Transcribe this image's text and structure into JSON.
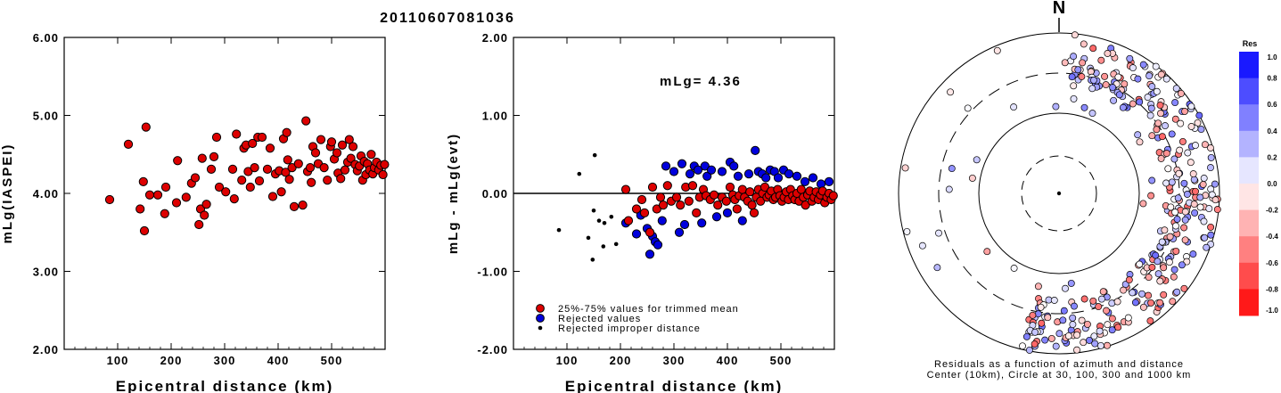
{
  "figure_title": "20110607081036",
  "colors": {
    "red": "#dd0000",
    "blue": "#0000dd",
    "black": "#000000"
  },
  "chart_data": [
    {
      "type": "scatter",
      "xlabel": "Epicentral distance (km)",
      "ylabel": "mLg(IASPEI)",
      "xlim": [
        0,
        600
      ],
      "ylim": [
        2.0,
        6.0
      ],
      "x_ticks": [
        100,
        200,
        300,
        400,
        500
      ],
      "y_ticks": [
        "2.00",
        "3.00",
        "4.00",
        "5.00",
        "6.00"
      ],
      "points": [
        [
          85,
          3.92
        ],
        [
          120,
          4.63
        ],
        [
          142,
          3.8
        ],
        [
          148,
          4.15
        ],
        [
          150,
          3.52
        ],
        [
          153,
          4.85
        ],
        [
          160,
          3.98
        ],
        [
          175,
          3.98
        ],
        [
          188,
          3.74
        ],
        [
          190,
          4.08
        ],
        [
          210,
          3.88
        ],
        [
          212,
          4.42
        ],
        [
          228,
          3.95
        ],
        [
          238,
          4.13
        ],
        [
          245,
          4.2
        ],
        [
          252,
          3.6
        ],
        [
          255,
          3.8
        ],
        [
          258,
          4.45
        ],
        [
          262,
          3.72
        ],
        [
          266,
          3.86
        ],
        [
          275,
          4.31
        ],
        [
          280,
          4.47
        ],
        [
          285,
          4.72
        ],
        [
          290,
          4.08
        ],
        [
          302,
          4.02
        ],
        [
          315,
          4.31
        ],
        [
          318,
          3.93
        ],
        [
          322,
          4.76
        ],
        [
          332,
          4.17
        ],
        [
          336,
          4.58
        ],
        [
          340,
          4.62
        ],
        [
          344,
          4.28
        ],
        [
          348,
          4.08
        ],
        [
          352,
          4.64
        ],
        [
          356,
          4.33
        ],
        [
          362,
          4.72
        ],
        [
          365,
          4.16
        ],
        [
          370,
          4.72
        ],
        [
          380,
          4.31
        ],
        [
          385,
          4.58
        ],
        [
          390,
          3.96
        ],
        [
          395,
          4.25
        ],
        [
          402,
          4.29
        ],
        [
          406,
          4.02
        ],
        [
          410,
          4.7
        ],
        [
          414,
          4.27
        ],
        [
          416,
          4.78
        ],
        [
          418,
          4.43
        ],
        [
          421,
          4.18
        ],
        [
          426,
          4.33
        ],
        [
          430,
          3.83
        ],
        [
          438,
          4.38
        ],
        [
          446,
          3.85
        ],
        [
          452,
          4.93
        ],
        [
          455,
          4.28
        ],
        [
          460,
          4.33
        ],
        [
          462,
          4.14
        ],
        [
          465,
          4.6
        ],
        [
          470,
          4.52
        ],
        [
          475,
          4.38
        ],
        [
          480,
          4.69
        ],
        [
          486,
          4.33
        ],
        [
          492,
          4.17
        ],
        [
          498,
          4.6
        ],
        [
          500,
          4.66
        ],
        [
          505,
          4.44
        ],
        [
          510,
          4.52
        ],
        [
          512,
          4.26
        ],
        [
          517,
          4.19
        ],
        [
          520,
          4.62
        ],
        [
          525,
          4.3
        ],
        [
          530,
          4.4
        ],
        [
          533,
          4.69
        ],
        [
          536,
          4.45
        ],
        [
          540,
          4.6
        ],
        [
          544,
          4.37
        ],
        [
          548,
          4.29
        ],
        [
          552,
          4.35
        ],
        [
          555,
          4.48
        ],
        [
          558,
          4.17
        ],
        [
          561,
          4.41
        ],
        [
          564,
          4.24
        ],
        [
          567,
          4.38
        ],
        [
          571,
          4.3
        ],
        [
          574,
          4.5
        ],
        [
          577,
          4.25
        ],
        [
          580,
          4.33
        ],
        [
          584,
          4.4
        ],
        [
          588,
          4.3
        ],
        [
          592,
          4.36
        ],
        [
          596,
          4.24
        ],
        [
          599,
          4.37
        ]
      ]
    },
    {
      "type": "scatter",
      "xlabel": "Epicentral distance (km)",
      "ylabel": "mLg - mLg(evt)",
      "annotation": "mLg= 4.36",
      "xlim": [
        0,
        600
      ],
      "ylim": [
        -2.0,
        2.0
      ],
      "x_ticks": [
        100,
        200,
        300,
        400,
        500
      ],
      "y_ticks": [
        "-2.00",
        "-1.00",
        "0.00",
        "1.00",
        "2.00"
      ],
      "reference_line_y": 0,
      "legend": [
        {
          "label": "25%-75% values for trimmed mean",
          "color": "#dd0000",
          "marker": "circle"
        },
        {
          "label": "Rejected values",
          "color": "#0000dd",
          "marker": "circle"
        },
        {
          "label": "Rejected improper distance",
          "color": "#000000",
          "marker": "dot"
        }
      ],
      "series": {
        "trimmed": [
          [
            210,
            0.05
          ],
          [
            215,
            -0.35
          ],
          [
            230,
            -0.2
          ],
          [
            240,
            -0.08
          ],
          [
            245,
            -0.25
          ],
          [
            255,
            -0.5
          ],
          [
            260,
            0.08
          ],
          [
            268,
            -0.2
          ],
          [
            275,
            -0.05
          ],
          [
            280,
            -0.15
          ],
          [
            288,
            0.1
          ],
          [
            295,
            -0.1
          ],
          [
            305,
            -0.05
          ],
          [
            312,
            -0.15
          ],
          [
            322,
            0.08
          ],
          [
            328,
            -0.1
          ],
          [
            335,
            0.1
          ],
          [
            342,
            -0.25
          ],
          [
            348,
            -0.05
          ],
          [
            355,
            0.05
          ],
          [
            360,
            -0.03
          ],
          [
            368,
            -0.08
          ],
          [
            375,
            -0.02
          ],
          [
            382,
            -0.15
          ],
          [
            390,
            -0.05
          ],
          [
            398,
            -0.1
          ],
          [
            405,
            0.08
          ],
          [
            410,
            -0.02
          ],
          [
            414,
            -0.08
          ],
          [
            418,
            -0.2
          ],
          [
            422,
            -0.03
          ],
          [
            428,
            0.05
          ],
          [
            432,
            -0.05
          ],
          [
            438,
            -0.1
          ],
          [
            442,
            0.02
          ],
          [
            446,
            -0.15
          ],
          [
            450,
            -0.25
          ],
          [
            454,
            -0.05
          ],
          [
            458,
            0.05
          ],
          [
            462,
            -0.1
          ],
          [
            466,
            0.0
          ],
          [
            470,
            0.08
          ],
          [
            474,
            -0.05
          ],
          [
            478,
            -0.02
          ],
          [
            482,
            0.03
          ],
          [
            486,
            -0.08
          ],
          [
            490,
            -0.05
          ],
          [
            494,
            0.05
          ],
          [
            498,
            -0.03
          ],
          [
            502,
            -0.1
          ],
          [
            506,
            -0.05
          ],
          [
            510,
            0.02
          ],
          [
            514,
            -0.08
          ],
          [
            518,
            0.05
          ],
          [
            522,
            -0.03
          ],
          [
            526,
            -0.08
          ],
          [
            530,
            0.0
          ],
          [
            534,
            -0.1
          ],
          [
            538,
            0.05
          ],
          [
            542,
            -0.05
          ],
          [
            546,
            -0.15
          ],
          [
            550,
            -0.02
          ],
          [
            554,
            0.03
          ],
          [
            558,
            -0.1
          ],
          [
            562,
            -0.05
          ],
          [
            566,
            0.02
          ],
          [
            570,
            -0.08
          ],
          [
            574,
            -0.02
          ],
          [
            578,
            0.03
          ],
          [
            582,
            -0.12
          ],
          [
            586,
            -0.05
          ],
          [
            590,
            0.0
          ],
          [
            594,
            -0.08
          ],
          [
            598,
            -0.03
          ]
        ],
        "rejected": [
          [
            210,
            -0.38
          ],
          [
            230,
            -0.52
          ],
          [
            238,
            -0.28
          ],
          [
            250,
            -0.45
          ],
          [
            255,
            -0.78
          ],
          [
            260,
            -0.55
          ],
          [
            265,
            -0.62
          ],
          [
            270,
            -0.66
          ],
          [
            278,
            -0.35
          ],
          [
            285,
            0.35
          ],
          [
            300,
            0.28
          ],
          [
            310,
            -0.5
          ],
          [
            315,
            0.38
          ],
          [
            320,
            -0.4
          ],
          [
            330,
            0.25
          ],
          [
            338,
            0.35
          ],
          [
            345,
            0.3
          ],
          [
            352,
            -0.38
          ],
          [
            358,
            0.35
          ],
          [
            362,
            0.22
          ],
          [
            370,
            0.3
          ],
          [
            380,
            -0.3
          ],
          [
            390,
            0.28
          ],
          [
            400,
            -0.25
          ],
          [
            405,
            0.4
          ],
          [
            412,
            0.35
          ],
          [
            420,
            0.22
          ],
          [
            428,
            -0.35
          ],
          [
            440,
            0.25
          ],
          [
            452,
            0.55
          ],
          [
            458,
            0.28
          ],
          [
            465,
            0.25
          ],
          [
            472,
            0.2
          ],
          [
            480,
            0.3
          ],
          [
            488,
            0.28
          ],
          [
            495,
            0.2
          ],
          [
            505,
            0.3
          ],
          [
            515,
            0.25
          ],
          [
            530,
            0.22
          ],
          [
            545,
            0.15
          ],
          [
            560,
            0.2
          ],
          [
            575,
            0.12
          ],
          [
            590,
            0.15
          ]
        ],
        "improper": [
          [
            85,
            -0.47
          ],
          [
            123,
            0.25
          ],
          [
            140,
            -0.57
          ],
          [
            148,
            -0.85
          ],
          [
            152,
            0.49
          ],
          [
            150,
            -0.22
          ],
          [
            160,
            -0.35
          ],
          [
            170,
            -0.38
          ],
          [
            183,
            -0.3
          ],
          [
            192,
            -0.65
          ],
          [
            168,
            -0.68
          ]
        ]
      }
    },
    {
      "type": "scatter",
      "subtype": "polar residuals",
      "north_label": "N",
      "caption_line1": "Residuals as a function of azimuth and distance",
      "caption_line2": "Center (10km), Circle at 30, 100, 300 and 1000 km",
      "colorbar": {
        "title": "Res",
        "ticks": [
          "1.0",
          "0.8",
          "0.6",
          "0.4",
          "0.2",
          "0.0",
          "-0.2",
          "-0.4",
          "-0.6",
          "-0.8",
          "-1.0"
        ]
      }
    }
  ]
}
